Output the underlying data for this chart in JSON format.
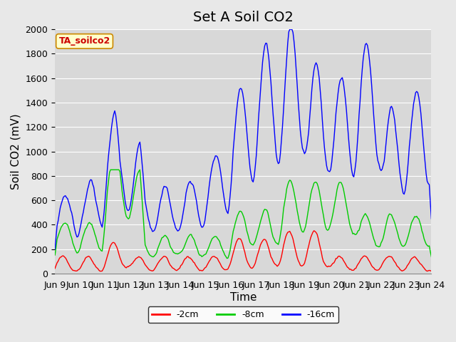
{
  "title": "Set A Soil CO2",
  "ylabel": "Soil CO2 (mV)",
  "xlabel": "Time",
  "legend_label": "TA_soilco2",
  "background_color": "#e8e8e8",
  "plot_bg_color": "#d8d8d8",
  "ylim": [
    0,
    2000
  ],
  "yticks": [
    0,
    200,
    400,
    600,
    800,
    1000,
    1200,
    1400,
    1600,
    1800,
    2000
  ],
  "series": {
    "2cm": {
      "color": "#ff0000",
      "label": "-2cm"
    },
    "8cm": {
      "color": "#00cc00",
      "label": "-8cm"
    },
    "16cm": {
      "color": "#0000ff",
      "label": "-16cm"
    }
  },
  "xticklabels": [
    "Jun 9",
    "Jun 10",
    "Jun 11",
    "Jun 12",
    "Jun 13",
    "Jun 14",
    "Jun 15",
    "Jun 16",
    "Jun 17",
    "Jun 18",
    "Jun 19",
    "Jun 20",
    "Jun 21",
    "Jun 22",
    "Jun 23",
    "Jun 24"
  ],
  "title_fontsize": 14,
  "axis_label_fontsize": 11,
  "tick_fontsize": 9
}
